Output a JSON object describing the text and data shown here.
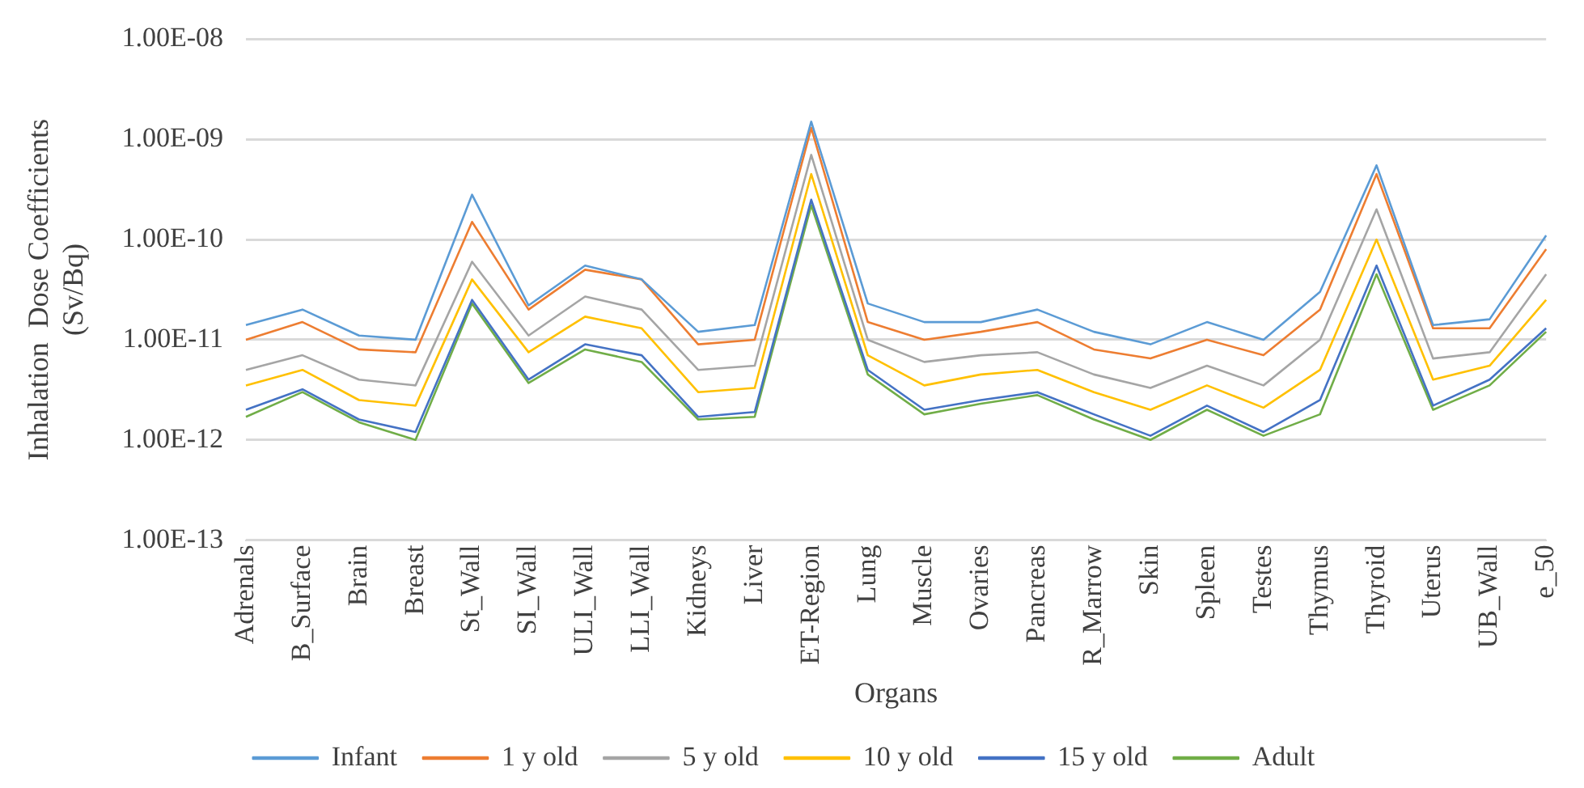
{
  "chart_data": {
    "type": "line",
    "xlabel": "Organs",
    "ylabel": "Inhalation  Dose Coefficients (Sv/Bq)",
    "categories": [
      "Adrenals",
      "B_Surface",
      "Brain",
      "Breast",
      "St_Wall",
      "SI_Wall",
      "ULI_Wall",
      "LLI_Wall",
      "Kidneys",
      "Liver",
      "ET-Region",
      "Lung",
      "Muscle",
      "Ovaries",
      "Pancreas",
      "R_Marrow",
      "Skin",
      "Spleen",
      "Testes",
      "Thymus",
      "Thyroid",
      "Uterus",
      "UB_Wall",
      "e_50"
    ],
    "series": [
      {
        "name": "Infant",
        "color": "#5b9bd5",
        "values": [
          1.4e-11,
          2e-11,
          1.1e-11,
          1e-11,
          2.8e-10,
          2.2e-11,
          5.5e-11,
          4e-11,
          1.2e-11,
          1.4e-11,
          1.5e-09,
          2.3e-11,
          1.5e-11,
          1.5e-11,
          2e-11,
          1.2e-11,
          9e-12,
          1.5e-11,
          1e-11,
          3e-11,
          5.5e-10,
          1.4e-11,
          1.6e-11,
          1.1e-10
        ]
      },
      {
        "name": "1 y old",
        "color": "#ed7d31",
        "values": [
          1e-11,
          1.5e-11,
          8e-12,
          7.5e-12,
          1.5e-10,
          2e-11,
          5e-11,
          4e-11,
          9e-12,
          1e-11,
          1.3e-09,
          1.5e-11,
          1e-11,
          1.2e-11,
          1.5e-11,
          8e-12,
          6.5e-12,
          1e-11,
          7e-12,
          2e-11,
          4.5e-10,
          1.3e-11,
          1.3e-11,
          8e-11
        ]
      },
      {
        "name": "5 y old",
        "color": "#a5a5a5",
        "values": [
          5e-12,
          7e-12,
          4e-12,
          3.5e-12,
          6e-11,
          1.1e-11,
          2.7e-11,
          2e-11,
          5e-12,
          5.5e-12,
          7e-10,
          1e-11,
          6e-12,
          7e-12,
          7.5e-12,
          4.5e-12,
          3.3e-12,
          5.5e-12,
          3.5e-12,
          1e-11,
          2e-10,
          6.5e-12,
          7.5e-12,
          4.5e-11
        ]
      },
      {
        "name": "10 y old",
        "color": "#ffc000",
        "values": [
          3.5e-12,
          5e-12,
          2.5e-12,
          2.2e-12,
          4e-11,
          7.5e-12,
          1.7e-11,
          1.3e-11,
          3e-12,
          3.3e-12,
          4.5e-10,
          7e-12,
          3.5e-12,
          4.5e-12,
          5e-12,
          3e-12,
          2e-12,
          3.5e-12,
          2.1e-12,
          5e-12,
          1e-10,
          4e-12,
          5.5e-12,
          2.5e-11
        ]
      },
      {
        "name": "15 y old",
        "color": "#4472c4",
        "values": [
          2e-12,
          3.2e-12,
          1.6e-12,
          1.2e-12,
          2.5e-11,
          4e-12,
          9e-12,
          7e-12,
          1.7e-12,
          1.9e-12,
          2.5e-10,
          5e-12,
          2e-12,
          2.5e-12,
          3e-12,
          1.8e-12,
          1.1e-12,
          2.2e-12,
          1.2e-12,
          2.5e-12,
          5.5e-11,
          2.2e-12,
          4e-12,
          1.3e-11
        ]
      },
      {
        "name": "Adult",
        "color": "#70ad47",
        "values": [
          1.7e-12,
          3e-12,
          1.5e-12,
          1e-12,
          2.3e-11,
          3.7e-12,
          8e-12,
          6e-12,
          1.6e-12,
          1.7e-12,
          2.2e-10,
          4.5e-12,
          1.8e-12,
          2.3e-12,
          2.8e-12,
          1.6e-12,
          1e-12,
          2e-12,
          1.1e-12,
          1.8e-12,
          4.5e-11,
          2e-12,
          3.5e-12,
          1.2e-11
        ]
      }
    ],
    "log": "y",
    "ylim": [
      1e-13,
      1e-08
    ],
    "yticks": [
      {
        "value": 1e-13,
        "label": "1.00E-13"
      },
      {
        "value": 1e-12,
        "label": "1.00E-12"
      },
      {
        "value": 1e-11,
        "label": "1.00E-11"
      },
      {
        "value": 1e-10,
        "label": "1.00E-10"
      },
      {
        "value": 1e-09,
        "label": "1.00E-09"
      },
      {
        "value": 1e-08,
        "label": "1.00E-08"
      }
    ],
    "grid": "y",
    "legend": "bottom",
    "marker": "none",
    "line_style": "solid"
  }
}
